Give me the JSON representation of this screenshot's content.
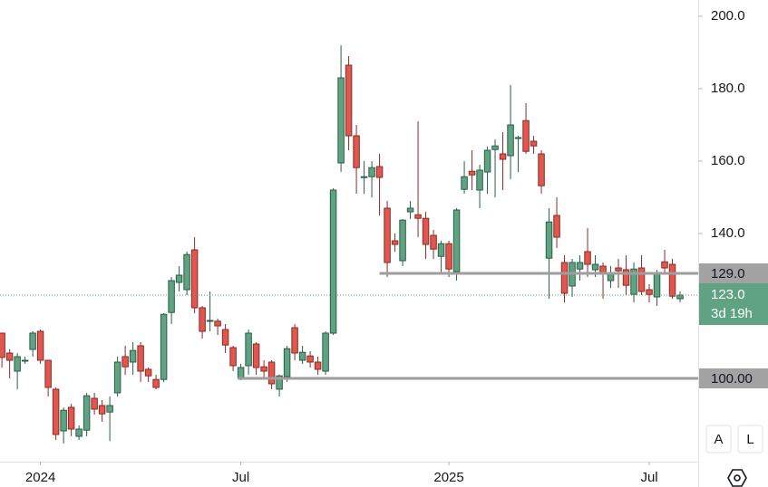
{
  "chart_data": {
    "type": "candlestick",
    "x": [
      0,
      1,
      2,
      3,
      4,
      5,
      6,
      7,
      8,
      9,
      10,
      11,
      12,
      13,
      14,
      15,
      16,
      17,
      18,
      19,
      20,
      21,
      22,
      23,
      24,
      25,
      26,
      27,
      28,
      29,
      30,
      31,
      32,
      33,
      34,
      35,
      36,
      37,
      38,
      39,
      40,
      41,
      42,
      43,
      44,
      45,
      46,
      47,
      48,
      49,
      50,
      51,
      52,
      53,
      54,
      55,
      56,
      57,
      58,
      59,
      60,
      61,
      62,
      63,
      64,
      65,
      66,
      67,
      68,
      69,
      70,
      71,
      72,
      73,
      74,
      75,
      76,
      77,
      78,
      79,
      80,
      81,
      82,
      83,
      84,
      85,
      86,
      87,
      88
    ],
    "open": [
      112.5,
      107,
      102,
      105,
      108,
      113,
      105,
      97,
      85.5,
      92,
      84,
      85.7,
      94.5,
      92.5,
      90.7,
      96,
      106,
      104.5,
      109,
      102.5,
      99.7,
      99.7,
      118.2,
      126.5,
      124.5,
      135.5,
      119.5,
      116,
      115.8,
      113.5,
      108.5,
      100,
      103.5,
      109.5,
      103.2,
      104.5,
      97,
      100.5,
      114,
      105,
      106.2,
      104.5,
      102,
      112.5,
      159.5,
      186.5,
      167,
      155.7,
      155.7,
      158.5,
      147,
      138,
      132.5,
      146,
      145.2,
      144.2,
      139.5,
      133.7,
      137.2,
      129.5,
      152.2,
      157.2,
      152,
      157,
      163.2,
      162,
      161.5,
      166.5,
      171.2,
      165.5,
      162,
      133.2,
      145,
      132,
      125.5,
      130.2,
      135,
      130,
      131,
      127,
      130.5,
      130,
      123.2,
      130.5,
      124.5,
      122.5,
      132.2,
      131.5,
      122
    ],
    "high": [
      112.5,
      108,
      107,
      106,
      113,
      113.5,
      105,
      97.5,
      92,
      93,
      87,
      96,
      96,
      94,
      95,
      106,
      109,
      110,
      110,
      103,
      101,
      118,
      128,
      131,
      135,
      139,
      120,
      124,
      116.5,
      115,
      109,
      104,
      113.5,
      110,
      105,
      105,
      101,
      109,
      115,
      109,
      107.5,
      106,
      113,
      152.5,
      192,
      189,
      170,
      160,
      160,
      162,
      149,
      140,
      144,
      149,
      171,
      146,
      141,
      138,
      138,
      147,
      160,
      163,
      159,
      164,
      166,
      168,
      181,
      167,
      176,
      167,
      163,
      147,
      150,
      134,
      133,
      134,
      141.5,
      134,
      132,
      131,
      133,
      134,
      132,
      134,
      126,
      130,
      135.5,
      133,
      124
    ],
    "low": [
      103,
      100,
      97,
      104,
      106,
      104,
      95,
      83,
      82,
      84,
      83,
      84,
      90,
      88,
      82.7,
      95,
      101,
      101,
      99,
      99,
      97,
      99,
      115,
      124,
      123,
      118,
      111,
      113,
      112,
      107,
      102,
      99.5,
      101,
      101,
      100,
      97,
      95,
      99,
      105,
      104,
      103,
      101,
      101,
      112,
      157,
      163,
      151,
      151,
      150,
      145,
      128,
      135,
      131,
      144,
      139,
      133,
      133,
      129,
      128,
      127,
      151,
      152,
      147,
      151,
      150,
      152,
      155,
      157,
      162,
      162,
      151,
      122,
      136,
      121,
      122.5,
      127,
      128,
      128,
      122,
      125,
      125,
      123,
      121,
      123,
      121,
      120,
      129,
      122,
      121
    ],
    "close": [
      105.8,
      105,
      106,
      105,
      112.5,
      105,
      97.5,
      84.5,
      91.2,
      86,
      86,
      95.2,
      91.5,
      90.2,
      92.5,
      104.5,
      103.2,
      107.7,
      102,
      100.7,
      97.5,
      117.7,
      127,
      128.5,
      134.2,
      119.5,
      113,
      116,
      114.5,
      109.2,
      103.5,
      103,
      112.5,
      103,
      102,
      98.5,
      100.7,
      108.2,
      107,
      107.2,
      104.5,
      102.5,
      112.5,
      152,
      183,
      167,
      158.2,
      155.7,
      158.2,
      155.5,
      132,
      137,
      143.7,
      147,
      144.2,
      137,
      135.7,
      137.2,
      130.2,
      146.5,
      155.7,
      156.2,
      157.5,
      163,
      164.2,
      160.5,
      170,
      166.5,
      162.7,
      164.2,
      153.2,
      143.2,
      139,
      123.5,
      132,
      132,
      131.5,
      131.5,
      129,
      129,
      129.7,
      125.7,
      130.2,
      124,
      123.2,
      129.2,
      130.5,
      122.7,
      123
    ],
    "up_color": "#5fa383",
    "down_color": "#e0574f",
    "xlim": [
      -0.25,
      90.35
    ],
    "ylim": [
      77,
      204.5
    ],
    "xticks": [
      {
        "value": 5,
        "label": "2024"
      },
      {
        "value": 31,
        "label": "Jul"
      },
      {
        "value": 58,
        "label": "2025"
      },
      {
        "value": 84,
        "label": "Jul"
      }
    ],
    "yticks": [
      {
        "value": 140,
        "label": "140.0"
      },
      {
        "value": 160,
        "label": "160.0"
      },
      {
        "value": 180,
        "label": "180.0"
      },
      {
        "value": 200,
        "label": "200.0"
      }
    ],
    "levels": [
      {
        "value": 129,
        "label": "129.0",
        "start": 49
      },
      {
        "value": 100,
        "label": "100.00",
        "start": 30.6
      }
    ],
    "last_price": {
      "value": 123,
      "label": "123.0",
      "countdown": "3d 19h"
    },
    "buttons": [
      "A",
      "L"
    ]
  }
}
